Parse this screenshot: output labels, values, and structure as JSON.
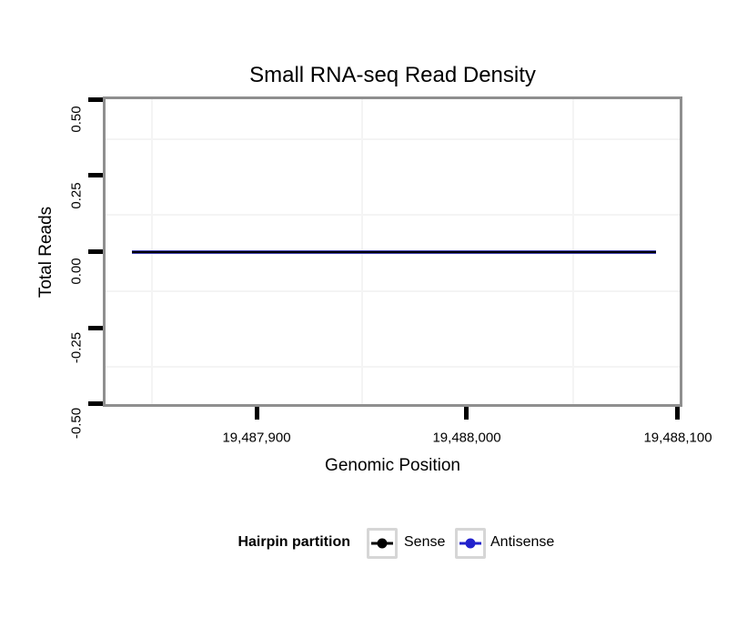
{
  "chart_data": {
    "type": "line",
    "title": "Small RNA-seq Read Density",
    "xlabel": "Genomic Position",
    "ylabel": "Total Reads",
    "x_tick_labels": [
      "19,487,900",
      "19,488,000",
      "19,488,100"
    ],
    "y_tick_labels": [
      "0.50",
      "0.25",
      "0.00",
      "-0.25",
      "-0.50"
    ],
    "ylim": [
      -0.5,
      0.5
    ],
    "xlim_estimate": [
      19487830,
      19488105
    ],
    "grid": "very faint light-grey minor gridlines only; white panel; grey panel border",
    "legend_position": "bottom",
    "legend_title": "Hairpin partition",
    "series": [
      {
        "name": "Sense",
        "color": "#000000",
        "x_start_estimate": 19487841,
        "x_end_estimate": 19488090,
        "constant_y": 0,
        "note": "flat line at y = 0 across the plotted region"
      },
      {
        "name": "Antisense",
        "color": "#2222cc",
        "x_start_estimate": 19487841,
        "x_end_estimate": 19488090,
        "constant_y": 0,
        "note": "flat line at y = 0, overlaps Sense line exactly"
      }
    ],
    "colors": {
      "panel_border": "#8f8f8f",
      "tick": "#000000",
      "minor_grid": "#f4f4f4",
      "sense": "#000000",
      "antisense": "#2222cc"
    }
  },
  "legend": {
    "title": "Hairpin partition",
    "entries": [
      {
        "label": "Sense",
        "color": "#000000"
      },
      {
        "label": "Antisense",
        "color": "#2222cc"
      }
    ]
  }
}
